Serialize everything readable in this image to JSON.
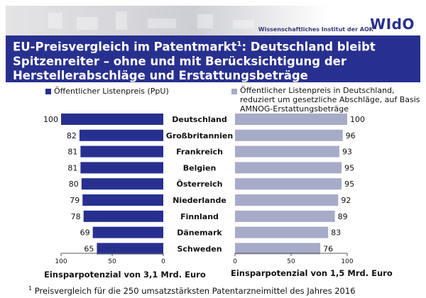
{
  "header": {
    "institute": "Wissenschaftliches Institut der AOK",
    "logo": "WIdO",
    "title_main": "EU-Preisvergleich im Patentmarkt",
    "title_sup": "1",
    "title_rest": ": Deutschland bleibt Spitzenreiter – ohne und mit Berücksichtigung der Herstellerabschläge und Erstattungsbeträge"
  },
  "colors": {
    "left_bar": "#28308f",
    "right_bar": "#a6abc8",
    "title_bg": "#28308f"
  },
  "legend": {
    "left": "Öffentlicher Listenpreis (PpU)",
    "right": "Öffentlicher Listenpreis in Deutschland, reduziert um gesetzliche Abschläge, auf Basis AMNOG-Erstattungsbeträge"
  },
  "summary": {
    "left": "Einsparpotenzial von 3,1 Mrd. Euro",
    "right": "Einsparpotenzial von 1,5 Mrd. Euro"
  },
  "footnote": {
    "sup": "1",
    "text": " Preisvergleich für die 250 umsatzstärksten Patentarzneimittel des Jahres 2016"
  },
  "chart_data": {
    "type": "bar",
    "orientation": "horizontal",
    "categories": [
      "Deutschland",
      "Großbritannien",
      "Frankreich",
      "Belgien",
      "Österreich",
      "Niederlande",
      "Finnland",
      "Dänemark",
      "Schweden"
    ],
    "series": [
      {
        "name": "Öffentlicher Listenpreis (PpU)",
        "values": [
          100,
          82,
          81,
          81,
          80,
          79,
          78,
          69,
          65
        ],
        "direction": "reversed",
        "xlim": [
          100,
          0
        ]
      },
      {
        "name": "Öffentlicher Listenpreis in Deutschland, reduziert um gesetzliche Abschläge, auf Basis AMNOG-Erstattungsbeträge",
        "values": [
          100,
          96,
          93,
          95,
          95,
          92,
          89,
          83,
          76
        ],
        "xlim": [
          0,
          100
        ]
      }
    ],
    "left_ticks": [
      "100",
      "50",
      "0"
    ],
    "right_ticks": [
      "0",
      "50",
      "100"
    ],
    "grid": false
  }
}
